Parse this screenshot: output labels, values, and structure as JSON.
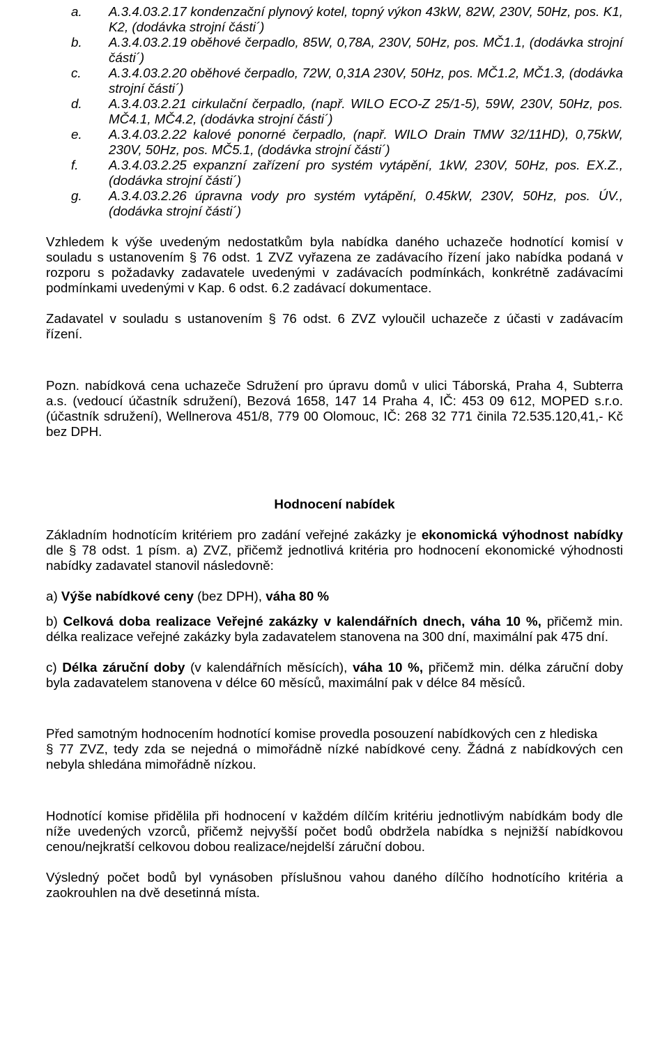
{
  "list": {
    "a": {
      "letter": "a.",
      "text": "A.3.4.03.2.17    kondenzační plynový kotel, topný výkon 43kW, 82W, 230V, 50Hz, pos. K1, K2, (dodávka strojní části´)"
    },
    "b": {
      "letter": "b.",
      "text": "A.3.4.03.2.19    oběhové čerpadlo, 85W, 0,78A, 230V, 50Hz, pos. MČ1.1, (dodávka strojní části´)"
    },
    "c": {
      "letter": "c.",
      "text": "A.3.4.03.2.20    oběhové čerpadlo, 72W, 0,31A 230V, 50Hz, pos. MČ1.2, MČ1.3, (dodávka strojní části´)"
    },
    "d": {
      "letter": "d.",
      "text": "A.3.4.03.2.21    cirkulační čerpadlo, (např. WILO ECO-Z 25/1-5), 59W, 230V, 50Hz, pos. MČ4.1, MČ4.2, (dodávka strojní části´)"
    },
    "e": {
      "letter": "e.",
      "text": "A.3.4.03.2.22    kalové ponorné čerpadlo, (např. WILO Drain TMW 32/11HD), 0,75kW, 230V, 50Hz, pos. MČ5.1, (dodávka strojní části´)"
    },
    "f": {
      "letter": "f.",
      "text": "A.3.4.03.2.25    expanzní zařízení pro systém vytápění, 1kW, 230V, 50Hz, pos. EX.Z., (dodávka strojní části´)"
    },
    "g": {
      "letter": "g.",
      "text": "A.3.4.03.2.26    úpravna vody pro systém vytápění, 0.45kW, 230V, 50Hz, pos. ÚV., (dodávka strojní části´)"
    }
  },
  "para1": "Vzhledem k výše uvedeným nedostatkům byla nabídka daného uchazeče hodnotící komisí v souladu s ustanovením § 76 odst. 1 ZVZ vyřazena ze zadávacího řízení jako nabídka podaná v rozporu s požadavky zadavatele uvedenými v zadávacích podmínkách, konkrétně zadávacími podmínkami uvedenými v Kap. 6 odst. 6.2 zadávací dokumentace.",
  "para2": "Zadavatel v souladu s ustanovením § 76 odst. 6 ZVZ vyloučil uchazeče z účasti v zadávacím řízení.",
  "para3": "Pozn. nabídková cena uchazeče Sdružení pro úpravu domů v ulici Táborská, Praha 4, Subterra a.s. (vedoucí účastník sdružení), Bezová 1658, 147 14 Praha 4, IČ: 453 09 612, MOPED s.r.o. (účastník sdružení), Wellnerova 451/8, 779 00 Olomouc, IČ: 268 32 771 činila 72.535.120,41,- Kč bez DPH.",
  "heading": "Hodnocení nabídek",
  "para4_pre": "Základním hodnotícím kritériem pro zadání veřejné zakázky je ",
  "para4_b1": "ekonomická výhodnost nabídky",
  "para4_post": " dle § 78 odst. 1 písm. a) ZVZ, přičemž jednotlivá kritéria pro hodnocení ekonomické výhodnosti nabídky zadavatel stanovil následovně:",
  "crit_a_pre": "a) ",
  "crit_a_b1": "Výše nabídkové ceny ",
  "crit_a_mid": "(bez DPH), ",
  "crit_a_b2": "váha 80 %",
  "crit_b_pre": "b) ",
  "crit_b_b1": "Celková doba realizace Veřejné zakázky v kalendářních dnech, váha 10 %, ",
  "crit_b_post": "přičemž min. délka realizace veřejné zakázky byla zadavatelem stanovena na 300 dní, maximální pak 475 dní.",
  "crit_c_pre": "c) ",
  "crit_c_b1": "Délka záruční doby ",
  "crit_c_mid": "(v kalendářních měsících), ",
  "crit_c_b2": "váha 10 %, ",
  "crit_c_post": "přičemž min. délka záruční doby byla zadavatelem stanovena v délce 60 měsíců, maximální pak v délce 84 měsíců.",
  "para5a": "Před samotným hodnocením hodnotící komise provedla posouzení nabídkových cen z hlediska",
  "para5b": "§ 77 ZVZ, tedy zda se nejedná o mimořádně nízké nabídkové ceny. Žádná z nabídkových cen nebyla shledána mimořádně nízkou.",
  "para6": "Hodnotící komise přidělila při hodnocení v každém dílčím kritériu jednotlivým nabídkám body dle níže uvedených vzorců, přičemž nejvyšší počet bodů obdržela nabídka s nejnižší nabídkovou cenou/nejkratší celkovou dobou realizace/nejdelší záruční dobou.",
  "para7": "Výsledný počet bodů byl vynásoben příslušnou vahou daného dílčího hodnotícího kritéria a zaokrouhlen na dvě desetinná místa."
}
